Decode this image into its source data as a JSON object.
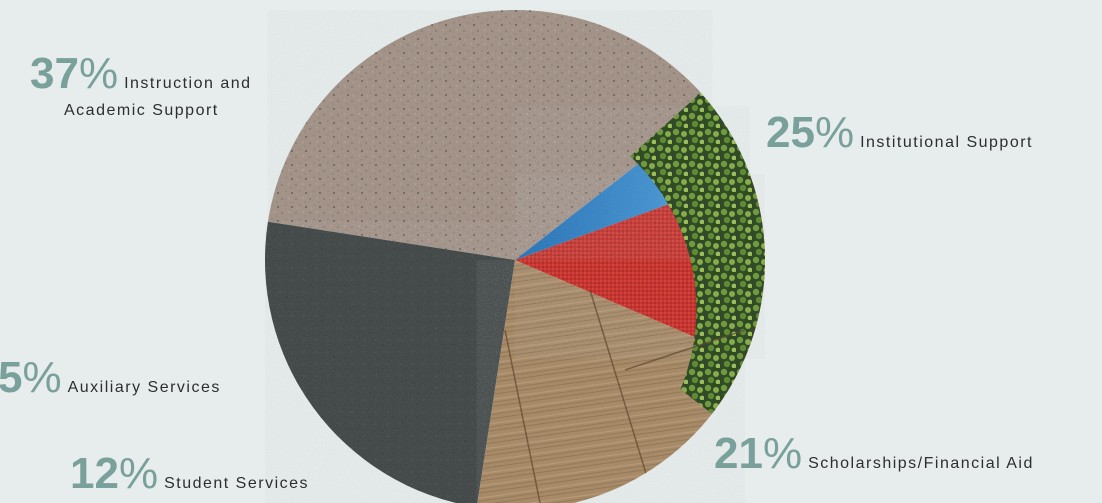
{
  "chart_data": {
    "type": "pie",
    "unit": "%",
    "slices": [
      {
        "label": "Instruction and Academic Support",
        "lines": [
          "Instruction and",
          "Academic Support"
        ],
        "value": 37,
        "fill": "concrete"
      },
      {
        "label": "Institutional Support",
        "lines": [
          "Institutional Support"
        ],
        "value": 25,
        "fill": "slate-ivy"
      },
      {
        "label": "Scholarships/Financial Aid",
        "lines": [
          "Scholarships/Financial Aid"
        ],
        "value": 21,
        "fill": "wood"
      },
      {
        "label": "Student Services",
        "lines": [
          "Student Services"
        ],
        "value": 12,
        "fill": "red-fabric"
      },
      {
        "label": "Auxiliary Services",
        "lines": [
          "Auxiliary Services"
        ],
        "value": 5,
        "fill": "sky"
      }
    ],
    "percent_color": "#7aa09c",
    "text_color": "#2e2e2e",
    "background": "#e7eded"
  }
}
